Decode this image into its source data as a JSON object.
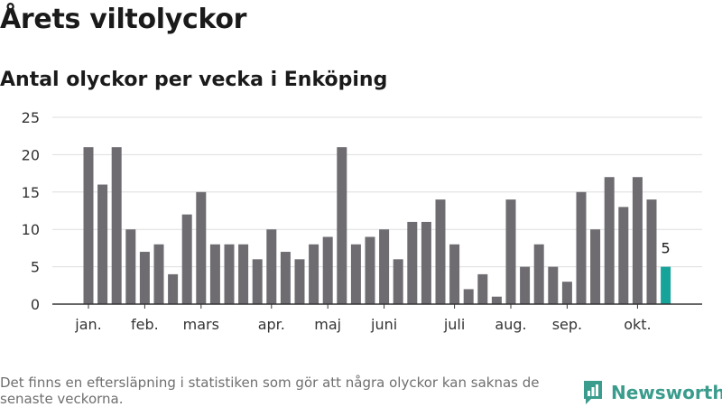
{
  "title": "Årets viltolyckor",
  "subtitle": "Antal olyckor per vecka i Enköping",
  "footnote": "Det finns en eftersläpning i statistiken som gör att några olyckor kan saknas de senaste veckorna.",
  "brand": {
    "name": "Newsworthy",
    "icon": "bar-chart-logo-icon",
    "color": "#3a9c8c"
  },
  "colors": {
    "bar": "#6e6c71",
    "highlight": "#16a39a",
    "grid": "#dedede",
    "axis": "#333333"
  },
  "chart_data": {
    "type": "bar",
    "title": "Årets viltolyckor",
    "subtitle": "Antal olyckor per vecka i Enköping",
    "xlabel": "",
    "ylabel": "",
    "ylim": [
      0,
      25
    ],
    "yticks": [
      0,
      5,
      10,
      15,
      20,
      25
    ],
    "grid": true,
    "weeks": [
      1,
      2,
      3,
      4,
      5,
      6,
      7,
      8,
      9,
      10,
      11,
      12,
      13,
      14,
      15,
      16,
      17,
      18,
      19,
      20,
      21,
      22,
      23,
      24,
      25,
      26,
      27,
      28,
      29,
      30,
      31,
      32,
      33,
      34,
      35,
      36,
      37,
      38,
      39,
      40,
      41,
      42
    ],
    "values": [
      21,
      16,
      21,
      10,
      7,
      8,
      4,
      12,
      15,
      8,
      8,
      8,
      6,
      10,
      7,
      6,
      8,
      9,
      21,
      8,
      9,
      10,
      6,
      11,
      11,
      14,
      8,
      2,
      4,
      1,
      14,
      5,
      8,
      5,
      3,
      15,
      10,
      17,
      13,
      17,
      14,
      5
    ],
    "highlight_last": true,
    "data_labels": [
      {
        "index": 41,
        "text": "5"
      }
    ],
    "month_labels": [
      {
        "label": "jan.",
        "week": 1
      },
      {
        "label": "feb.",
        "week": 5
      },
      {
        "label": "mars",
        "week": 9
      },
      {
        "label": "apr.",
        "week": 14
      },
      {
        "label": "maj",
        "week": 18
      },
      {
        "label": "juni",
        "week": 22
      },
      {
        "label": "juli",
        "week": 27
      },
      {
        "label": "aug.",
        "week": 31
      },
      {
        "label": "sep.",
        "week": 35
      },
      {
        "label": "okt.",
        "week": 40
      }
    ]
  }
}
